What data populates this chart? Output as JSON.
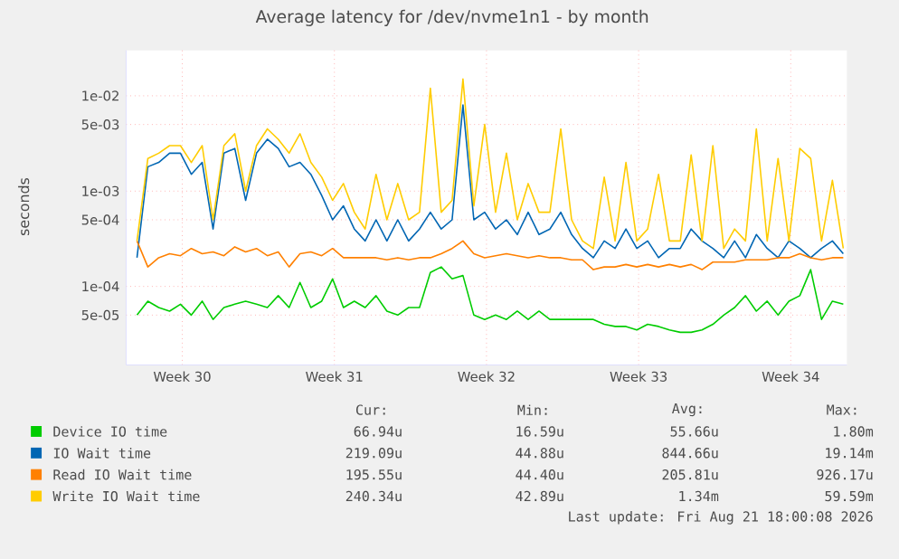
{
  "chart_data": {
    "type": "line",
    "title": "Average latency for /dev/nvme1n1 - by month",
    "ylabel": "seconds",
    "log": true,
    "grid": true,
    "legend": "bottom",
    "xlim": [
      "2026-07-19T18:00",
      "2026-08-21T22:00"
    ],
    "xticks": [
      {
        "value": "2026-07-22T08:00",
        "label": "Week 30"
      },
      {
        "value": "2026-07-29T08:00",
        "label": "Week 31"
      },
      {
        "value": "2026-08-05T08:00",
        "label": "Week 32"
      },
      {
        "value": "2026-08-12T08:00",
        "label": "Week 33"
      },
      {
        "value": "2026-08-19T08:00",
        "label": "Week 34"
      }
    ],
    "ylim": [
      1.5e-05,
      0.03
    ],
    "yticks": [
      {
        "value": 5e-05,
        "label": "5e-05"
      },
      {
        "value": 0.0001,
        "label": "1e-04"
      },
      {
        "value": 0.0005,
        "label": "5e-04"
      },
      {
        "value": 0.001,
        "label": "1e-03"
      },
      {
        "value": 0.005,
        "label": "5e-03"
      },
      {
        "value": 0.01,
        "label": "1e-02"
      }
    ],
    "x": [
      "2026-07-20T06:00",
      "2026-07-20T18:00",
      "2026-07-21T06:00",
      "2026-07-21T18:00",
      "2026-07-22T06:00",
      "2026-07-22T18:00",
      "2026-07-23T06:00",
      "2026-07-23T18:00",
      "2026-07-24T06:00",
      "2026-07-24T18:00",
      "2026-07-25T06:00",
      "2026-07-25T18:00",
      "2026-07-26T06:00",
      "2026-07-26T18:00",
      "2026-07-27T06:00",
      "2026-07-27T18:00",
      "2026-07-28T06:00",
      "2026-07-28T18:00",
      "2026-07-29T06:00",
      "2026-07-29T18:00",
      "2026-07-30T06:00",
      "2026-07-30T18:00",
      "2026-07-31T06:00",
      "2026-07-31T18:00",
      "2026-08-01T06:00",
      "2026-08-01T18:00",
      "2026-08-02T06:00",
      "2026-08-02T18:00",
      "2026-08-03T06:00",
      "2026-08-03T18:00",
      "2026-08-04T06:00",
      "2026-08-04T18:00",
      "2026-08-05T06:00",
      "2026-08-05T18:00",
      "2026-08-06T06:00",
      "2026-08-06T18:00",
      "2026-08-07T06:00",
      "2026-08-07T18:00",
      "2026-08-08T06:00",
      "2026-08-08T18:00",
      "2026-08-09T06:00",
      "2026-08-09T18:00",
      "2026-08-10T06:00",
      "2026-08-10T18:00",
      "2026-08-11T06:00",
      "2026-08-11T18:00",
      "2026-08-12T06:00",
      "2026-08-12T18:00",
      "2026-08-13T06:00",
      "2026-08-13T18:00",
      "2026-08-14T06:00",
      "2026-08-14T18:00",
      "2026-08-15T06:00",
      "2026-08-15T18:00",
      "2026-08-16T06:00",
      "2026-08-16T18:00",
      "2026-08-17T06:00",
      "2026-08-17T18:00",
      "2026-08-18T06:00",
      "2026-08-18T18:00",
      "2026-08-19T06:00",
      "2026-08-19T18:00",
      "2026-08-20T06:00",
      "2026-08-20T18:00",
      "2026-08-21T06:00",
      "2026-08-21T18:00"
    ],
    "series": [
      {
        "name": "Device IO time",
        "color": "#00cc00",
        "values": [
          5e-05,
          7e-05,
          6e-05,
          5.5e-05,
          6.5e-05,
          5e-05,
          7e-05,
          4.5e-05,
          6e-05,
          6.5e-05,
          7e-05,
          6.5e-05,
          6e-05,
          8e-05,
          6e-05,
          0.00011,
          6e-05,
          7e-05,
          0.00012,
          6e-05,
          7e-05,
          6e-05,
          8e-05,
          5.5e-05,
          5e-05,
          6e-05,
          6e-05,
          0.00014,
          0.00016,
          0.00012,
          0.00013,
          5e-05,
          4.5e-05,
          5e-05,
          4.5e-05,
          5.5e-05,
          4.5e-05,
          5.5e-05,
          4.5e-05,
          4.5e-05,
          4.5e-05,
          4.5e-05,
          4.5e-05,
          4e-05,
          3.8e-05,
          3.8e-05,
          3.5e-05,
          4e-05,
          3.8e-05,
          3.5e-05,
          3.3e-05,
          3.3e-05,
          3.5e-05,
          4e-05,
          5e-05,
          6e-05,
          8e-05,
          5.5e-05,
          7e-05,
          5e-05,
          7e-05,
          8e-05,
          0.00015,
          4.5e-05,
          7e-05,
          6.5e-05
        ]
      },
      {
        "name": "IO Wait time",
        "color": "#0066b3",
        "values": [
          0.0002,
          0.0018,
          0.002,
          0.0025,
          0.0025,
          0.0015,
          0.002,
          0.0004,
          0.0025,
          0.0028,
          0.0008,
          0.0025,
          0.0035,
          0.0028,
          0.0018,
          0.002,
          0.0015,
          0.0009,
          0.0005,
          0.0007,
          0.0004,
          0.0003,
          0.0005,
          0.0003,
          0.0005,
          0.0003,
          0.0004,
          0.0006,
          0.0004,
          0.0005,
          0.008,
          0.0005,
          0.0006,
          0.0004,
          0.0005,
          0.00035,
          0.0006,
          0.00035,
          0.0004,
          0.0006,
          0.00035,
          0.00025,
          0.0002,
          0.0003,
          0.00025,
          0.0004,
          0.00025,
          0.0003,
          0.0002,
          0.00025,
          0.00025,
          0.0004,
          0.0003,
          0.00025,
          0.0002,
          0.0003,
          0.0002,
          0.00035,
          0.00025,
          0.0002,
          0.0003,
          0.00025,
          0.0002,
          0.00025,
          0.0003,
          0.00022
        ]
      },
      {
        "name": "Read IO Wait time",
        "color": "#ff8000",
        "values": [
          0.0003,
          0.00016,
          0.0002,
          0.00022,
          0.00021,
          0.00025,
          0.00022,
          0.00023,
          0.00021,
          0.00026,
          0.00023,
          0.00025,
          0.00021,
          0.00023,
          0.00016,
          0.00022,
          0.00023,
          0.00021,
          0.00025,
          0.0002,
          0.0002,
          0.0002,
          0.0002,
          0.00019,
          0.0002,
          0.00019,
          0.0002,
          0.0002,
          0.00022,
          0.00025,
          0.0003,
          0.00022,
          0.0002,
          0.00021,
          0.00022,
          0.00021,
          0.0002,
          0.00021,
          0.0002,
          0.0002,
          0.00019,
          0.00019,
          0.00015,
          0.00016,
          0.00016,
          0.00017,
          0.00016,
          0.00017,
          0.00016,
          0.00017,
          0.00016,
          0.00017,
          0.00015,
          0.00018,
          0.00018,
          0.00018,
          0.00019,
          0.00019,
          0.00019,
          0.0002,
          0.0002,
          0.00022,
          0.0002,
          0.00019,
          0.0002,
          0.0002
        ]
      },
      {
        "name": "Write IO Wait time",
        "color": "#ffcc00",
        "values": [
          0.0003,
          0.0022,
          0.0025,
          0.003,
          0.003,
          0.002,
          0.003,
          0.0005,
          0.003,
          0.004,
          0.001,
          0.003,
          0.0045,
          0.0035,
          0.0025,
          0.004,
          0.002,
          0.0014,
          0.0008,
          0.0012,
          0.0006,
          0.0004,
          0.0015,
          0.0005,
          0.0012,
          0.0005,
          0.0006,
          0.012,
          0.0006,
          0.0008,
          0.015,
          0.0007,
          0.005,
          0.0006,
          0.0025,
          0.0005,
          0.0012,
          0.0006,
          0.0006,
          0.0045,
          0.0005,
          0.0003,
          0.00025,
          0.0014,
          0.0003,
          0.002,
          0.0003,
          0.0004,
          0.0015,
          0.0003,
          0.0003,
          0.0024,
          0.0003,
          0.003,
          0.00025,
          0.0004,
          0.0003,
          0.0045,
          0.0003,
          0.0022,
          0.0003,
          0.0028,
          0.0022,
          0.0003,
          0.0013,
          0.00025
        ]
      }
    ],
    "annotations": [
      "Cur:",
      "Min:",
      "Avg:",
      "Max:",
      "66.94u",
      "16.59u",
      "55.66u",
      "1.80m",
      "219.09u",
      "44.88u",
      "844.66u",
      "19.14m",
      "195.55u",
      "44.40u",
      "205.81u",
      "926.17u",
      "240.34u",
      "42.89u",
      "1.34m",
      "59.59m",
      "Last update: Fri Aug 21 18:00:08 2026"
    ]
  }
}
